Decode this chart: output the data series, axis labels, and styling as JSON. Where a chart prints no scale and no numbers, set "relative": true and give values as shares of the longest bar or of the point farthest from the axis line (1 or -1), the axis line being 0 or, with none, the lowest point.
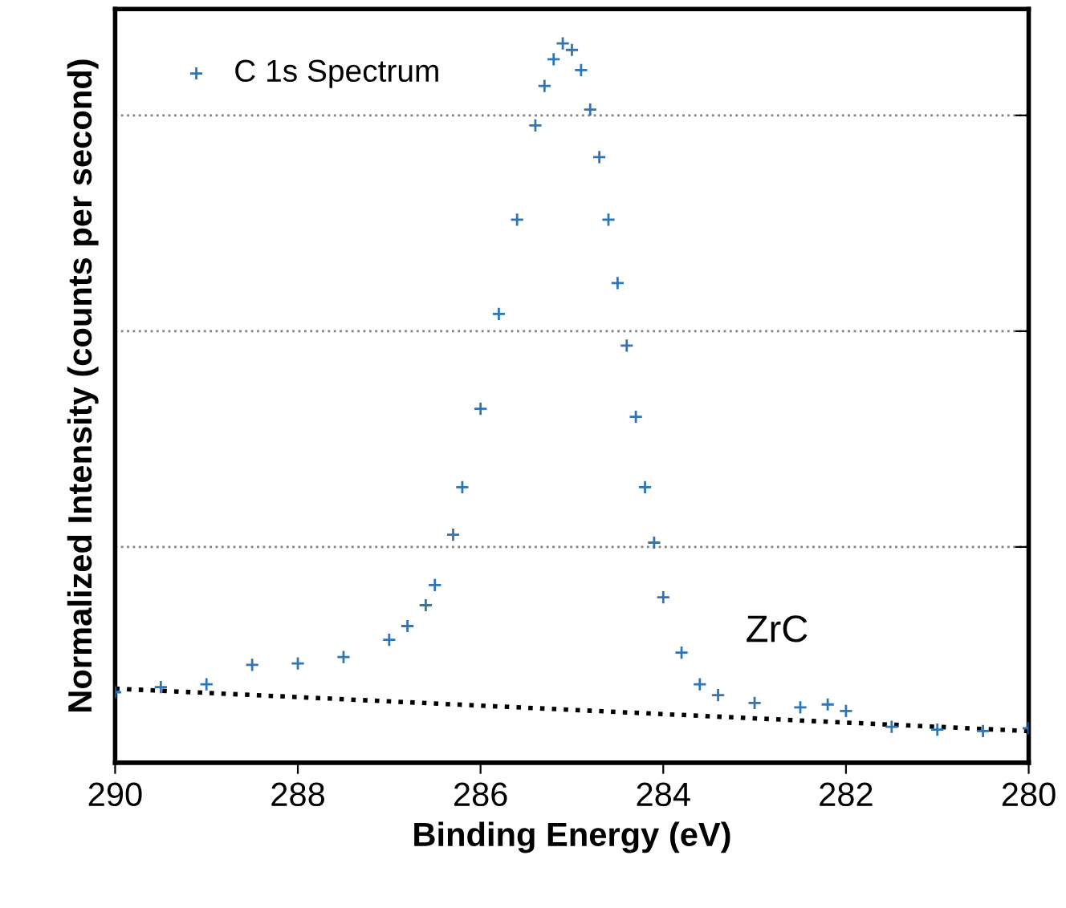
{
  "chart_data": {
    "type": "scatter",
    "xlabel": "Binding Energy (eV)",
    "ylabel": "Normalized Intensity (counts per second)",
    "relative": true,
    "xlim": [
      290,
      280
    ],
    "xticks": [
      290,
      288,
      286,
      284,
      282,
      280
    ],
    "grid": "y",
    "legend": "top left",
    "annotations": [
      "ZrC"
    ],
    "series": [
      {
        "name": "C 1s Spectrum",
        "color": "#2e75b6",
        "marker": "cross",
        "x": [
          290,
          289.5,
          289,
          288.5,
          288,
          287.5,
          287,
          286.8,
          286.6,
          286.5,
          286.3,
          286.2,
          286.0,
          285.8,
          285.6,
          285.4,
          285.3,
          285.2,
          285.1,
          285.0,
          284.9,
          284.8,
          284.7,
          284.6,
          284.5,
          284.4,
          284.3,
          284.2,
          284.1,
          284.0,
          283.8,
          283.6,
          283.4,
          283.0,
          282.5,
          282.2,
          282.0,
          281.5,
          281.0,
          280.5,
          280.0
        ],
        "values": [
          0.098,
          0.105,
          0.109,
          0.136,
          0.138,
          0.147,
          0.171,
          0.19,
          0.219,
          0.247,
          0.317,
          0.383,
          0.492,
          0.624,
          0.755,
          0.886,
          0.941,
          0.978,
          1.0,
          0.991,
          0.963,
          0.908,
          0.842,
          0.755,
          0.667,
          0.58,
          0.481,
          0.383,
          0.306,
          0.23,
          0.153,
          0.109,
          0.094,
          0.083,
          0.077,
          0.081,
          0.072,
          0.05,
          0.046,
          0.044,
          0.048
        ]
      },
      {
        "type": "line",
        "color": "#000000",
        "line_style": "dotted",
        "x": [
          290,
          280
        ],
        "values": [
          0.103,
          0.044
        ]
      }
    ]
  }
}
